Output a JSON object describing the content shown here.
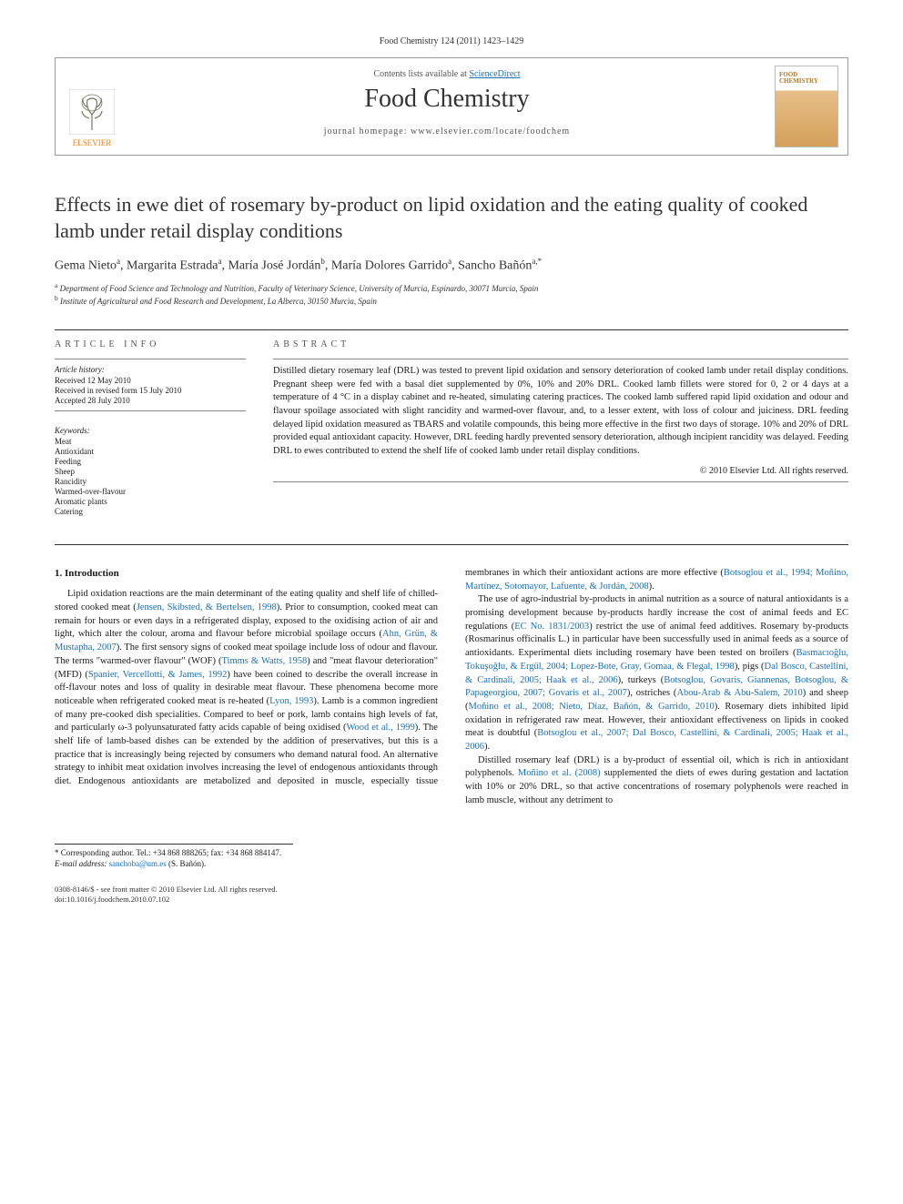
{
  "header": {
    "citation": "Food Chemistry 124 (2011) 1423–1429",
    "contents_line_pre": "Contents lists available at ",
    "contents_line_link": "ScienceDirect",
    "journal": "Food Chemistry",
    "homepage_label": "journal homepage: www.elsevier.com/locate/foodchem",
    "publisher": "ELSEVIER",
    "cover_title": "FOOD CHEMISTRY"
  },
  "article": {
    "title": "Effects in ewe diet of rosemary by-product on lipid oxidation and the eating quality of cooked lamb under retail display conditions",
    "authors_html": "Gema Nieto<sup>a</sup>, Margarita Estrada<sup>a</sup>, María José Jordán<sup>b</sup>, María Dolores Garrido<sup>a</sup>, Sancho Bañón<sup>a,*</sup>",
    "affiliations": [
      {
        "sup": "a",
        "text": "Department of Food Science and Technology and Nutrition, Faculty of Veterinary Science, University of Murcia, Espinardo, 30071 Murcia, Spain"
      },
      {
        "sup": "b",
        "text": "Institute of Agricultural and Food Research and Development, La Alberca, 30150 Murcia, Spain"
      }
    ]
  },
  "meta": {
    "info_heading": "ARTICLE INFO",
    "abstract_heading": "ABSTRACT",
    "history_label": "Article history:",
    "history": [
      "Received 12 May 2010",
      "Received in revised form 15 July 2010",
      "Accepted 28 July 2010"
    ],
    "keywords_label": "Keywords:",
    "keywords": [
      "Meat",
      "Antioxidant",
      "Feeding",
      "Sheep",
      "Rancidity",
      "Warmed-over-flavour",
      "Aromatic plants",
      "Catering"
    ]
  },
  "abstract": {
    "text": "Distilled dietary rosemary leaf (DRL) was tested to prevent lipid oxidation and sensory deterioration of cooked lamb under retail display conditions. Pregnant sheep were fed with a basal diet supplemented by 0%, 10% and 20% DRL. Cooked lamb fillets were stored for 0, 2 or 4 days at a temperature of 4 °C in a display cabinet and re-heated, simulating catering practices. The cooked lamb suffered rapid lipid oxidation and odour and flavour spoilage associated with slight rancidity and warmed-over flavour, and, to a lesser extent, with loss of colour and juiciness. DRL feeding delayed lipid oxidation measured as TBARS and volatile compounds, this being more effective in the first two days of storage. 10% and 20% of DRL provided equal antioxidant capacity. However, DRL feeding hardly prevented sensory deterioration, although incipient rancidity was delayed. Feeding DRL to ewes contributed to extend the shelf life of cooked lamb under retail display conditions.",
    "copyright": "© 2010 Elsevier Ltd. All rights reserved."
  },
  "body": {
    "section1_title": "1. Introduction",
    "p1_pre": "Lipid oxidation reactions are the main determinant of the eating quality and shelf life of chilled-stored cooked meat (",
    "p1_ref1": "Jensen, Skibsted, & Bertelsen, 1998",
    "p1_mid1": "). Prior to consumption, cooked meat can remain for hours or even days in a refrigerated display, exposed to the oxidising action of air and light, which alter the colour, aroma and flavour before microbial spoilage occurs (",
    "p1_ref2": "Ahn, Grün, & Mustapha, 2007",
    "p1_mid2": "). The first sensory signs of cooked meat spoilage include loss of odour and flavour. The terms \"warmed-over flavour\" (WOF) (",
    "p1_ref3": "Timms & Watts, 1958",
    "p1_mid3": ") and \"meat flavour deterioration\" (MFD) (",
    "p1_ref4": "Spanier, Vercellotti, & James, 1992",
    "p1_mid4": ") have been coined to describe the overall increase in off-flavour notes and loss of quality in desirable meat flavour. These phenomena become more noticeable when refrigerated cooked meat is re-heated (",
    "p1_ref5": "Lyon, 1993",
    "p1_mid5": "). Lamb is a common ingredient of many pre-cooked dish specialities. Compared to beef or pork, lamb contains high levels of fat, and particularly ω-3 polyunsaturated fatty acids capable of being oxidised (",
    "p1_ref6": "Wood et al., 1999",
    "p1_mid6": "). The shelf life of lamb-based dishes can be extended by the addition of preservatives, but this is a practice that is increasingly being rejected by consumers who demand natural food. An alternative strategy to inhibit meat oxidation involves increasing the level of endogenous antioxidants through ",
    "p1_col2_pre": "diet. Endogenous antioxidants are metabolized and deposited in muscle, especially tissue membranes in which their antioxidant actions are more effective (",
    "p1_col2_ref1": "Botsoglou et al., 1994; Moñino, Martínez, Sotomayor, Lafuente, & Jordán, 2008",
    "p1_col2_post": ").",
    "p2_pre": "The use of agro-industrial by-products in animal nutrition as a source of natural antioxidants is a promising development because by-products hardly increase the cost of animal feeds and EC regulations (",
    "p2_ref1": "EC No. 1831/2003",
    "p2_mid1": ") restrict the use of animal feed additives. Rosemary by-products (Rosmarinus officinalis L.) in particular have been successfully used in animal feeds as a source of antioxidants. Experimental diets including rosemary have been tested on broilers (",
    "p2_ref2": "Basmacıoğlu, Tokuşoğlu, & Ergül, 2004; Lopez-Bote, Gray, Gomaa, & Flegal, 1998",
    "p2_mid2": "), pigs (",
    "p2_ref3": "Dal Bosco, Castellini, & Cardinali, 2005; Haak et al., 2006",
    "p2_mid3": "), turkeys (",
    "p2_ref4": "Botsoglou, Govaris, Giannenas, Botsoglou, & Papageorgiou, 2007; Govaris et al., 2007",
    "p2_mid4": "), ostriches (",
    "p2_ref5": "Abou-Arab & Abu-Salem, 2010",
    "p2_mid5": ") and sheep (",
    "p2_ref6": "Moñino et al., 2008; Nieto, Díaz, Bañón, & Garrido, 2010",
    "p2_mid6": "). Rosemary diets inhibited lipid oxidation in refrigerated raw meat. However, their antioxidant effectiveness on lipids in cooked meat is doubtful (",
    "p2_ref7": "Botsoglou et al., 2007; Dal Bosco, Castellini, & Cardinali, 2005; Haak et al., 2006",
    "p2_post": ").",
    "p3_pre": "Distilled rosemary leaf (DRL) is a by-product of essential oil, which is rich in antioxidant polyphenols. ",
    "p3_ref1": "Moñino et al. (2008)",
    "p3_post": " supplemented the diets of ewes during gestation and lactation with 10% or 20% DRL, so that active concentrations of rosemary polyphenols were reached in lamb muscle, without any detriment to"
  },
  "footnotes": {
    "corresponding": "* Corresponding author. Tel.: +34 868 888265; fax: +34 868 884147.",
    "email_label": "E-mail address:",
    "email": "sanchoba@um.es",
    "email_paren": "(S. Bañón)."
  },
  "footer": {
    "line1": "0308-8146/$ - see front matter © 2010 Elsevier Ltd. All rights reserved.",
    "line2": "doi:10.1016/j.foodchem.2010.07.102"
  },
  "colors": {
    "link": "#1b6fb5",
    "publisher_orange": "#ff7a00",
    "text": "#1a1a1a",
    "rule": "#333333"
  },
  "typography": {
    "title_fontsize": 22,
    "body_fontsize": 10.5,
    "meta_fontsize": 9,
    "journal_fontsize": 28
  }
}
